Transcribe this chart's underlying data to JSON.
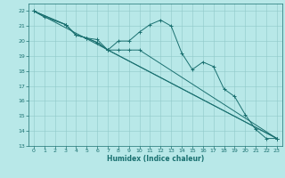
{
  "background_color": "#b8e8e8",
  "grid_color": "#90c8c8",
  "line_color": "#1a7070",
  "marker_color": "#1a7070",
  "xlabel": "Humidex (Indice chaleur)",
  "xlim": [
    -0.5,
    23.5
  ],
  "ylim": [
    13,
    22.5
  ],
  "xticks": [
    0,
    1,
    2,
    3,
    4,
    5,
    6,
    7,
    8,
    9,
    10,
    11,
    12,
    13,
    14,
    15,
    16,
    17,
    18,
    19,
    20,
    21,
    22,
    23
  ],
  "yticks": [
    13,
    14,
    15,
    16,
    17,
    18,
    19,
    20,
    21,
    22
  ],
  "lines": [
    {
      "x": [
        0,
        1,
        3,
        4,
        5,
        6,
        7,
        8,
        9,
        10,
        11,
        12,
        13,
        14,
        15,
        16,
        17,
        18,
        19,
        20,
        21,
        22,
        23
      ],
      "y": [
        22,
        21.6,
        21.1,
        20.4,
        20.2,
        20.1,
        19.4,
        20.0,
        20.0,
        20.6,
        21.1,
        21.4,
        21.0,
        19.2,
        18.1,
        18.6,
        18.3,
        16.8,
        16.3,
        15.1,
        14.1,
        13.5,
        13.5
      ],
      "marker": true
    },
    {
      "x": [
        0,
        3,
        4,
        5,
        6,
        7,
        8,
        9,
        10,
        23
      ],
      "y": [
        22,
        21.1,
        20.4,
        20.2,
        19.9,
        19.4,
        19.4,
        19.4,
        19.4,
        13.5
      ],
      "marker": true
    },
    {
      "x": [
        0,
        3,
        4,
        5,
        6,
        7,
        23
      ],
      "y": [
        22,
        21.1,
        20.4,
        20.2,
        19.9,
        19.4,
        13.5
      ],
      "marker": true
    },
    {
      "x": [
        0,
        23
      ],
      "y": [
        22,
        13.5
      ],
      "marker": false
    }
  ]
}
